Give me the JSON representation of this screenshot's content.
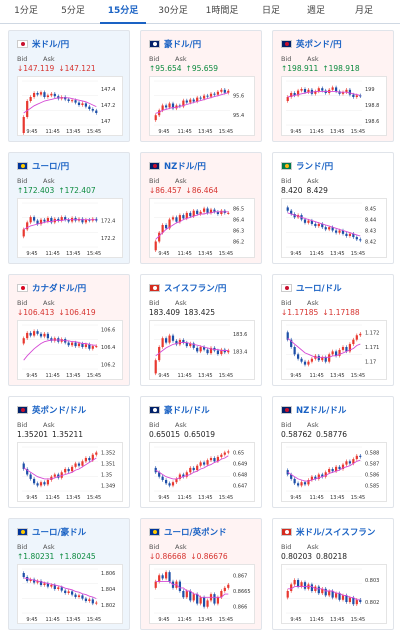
{
  "tabs": [
    "1分足",
    "5分足",
    "15分足",
    "30分足",
    "1時間足",
    "日足",
    "週足",
    "月足"
  ],
  "active_tab": 2,
  "labels": {
    "bid": "Bid",
    "ask": "Ask"
  },
  "colors": {
    "up_candle": "#e8382f",
    "down_candle": "#1d4fa8",
    "ma": "#d54ad5",
    "up_text": "#0b8a3e",
    "down_text": "#d6332f",
    "accent": "#1a62c4"
  },
  "cards": [
    {
      "pair": "米ドル/円",
      "flag": "us-flag",
      "trend": "down",
      "bid": "↓147.119",
      "ask": "↓147.121",
      "chart_data": {
        "type": "candlestick",
        "xticks": [
          "9:45",
          "11:45",
          "13:45",
          "15:45"
        ],
        "yticks": [
          "147.4",
          "147.2",
          "147"
        ],
        "ylim": [
          146.95,
          147.5
        ],
        "close": [
          147.05,
          147.25,
          147.3,
          147.35,
          147.33,
          147.36,
          147.3,
          147.32,
          147.34,
          147.31,
          147.28,
          147.3,
          147.27,
          147.25,
          147.26,
          147.23,
          147.2,
          147.22,
          147.18,
          147.15,
          147.13,
          147.1
        ],
        "ma": [
          147.1,
          147.13,
          147.16,
          147.19,
          147.21,
          147.23,
          147.25,
          147.26,
          147.27,
          147.28,
          147.29,
          147.29,
          147.29,
          147.29,
          147.28,
          147.27,
          147.26,
          147.25,
          147.24,
          147.22,
          147.2,
          147.18
        ]
      }
    },
    {
      "pair": "豪ドル/円",
      "flag": "au-flag",
      "trend": "up",
      "bid": "↑95.654",
      "ask": "↑95.659",
      "chart_data": {
        "type": "candlestick",
        "xticks": [
          "9:45",
          "11:45",
          "13:45",
          "15:45"
        ],
        "yticks": [
          "95.6",
          "95.4"
        ],
        "ylim": [
          95.3,
          95.75
        ],
        "close": [
          95.4,
          95.45,
          95.5,
          95.48,
          95.52,
          95.47,
          95.5,
          95.49,
          95.55,
          95.53,
          95.56,
          95.54,
          95.58,
          95.57,
          95.6,
          95.59,
          95.62,
          95.61,
          95.64,
          95.66,
          95.63,
          95.65
        ],
        "ma": [
          95.42,
          95.43,
          95.45,
          95.46,
          95.47,
          95.48,
          95.48,
          95.49,
          95.5,
          95.51,
          95.52,
          95.53,
          95.54,
          95.55,
          95.56,
          95.57,
          95.58,
          95.59,
          95.6,
          95.61,
          95.62,
          95.63
        ]
      }
    },
    {
      "pair": "英ポンド/円",
      "flag": "uk-flag",
      "trend": "up",
      "bid": "↑198.911",
      "ask": "↑198.918",
      "chart_data": {
        "type": "candlestick",
        "xticks": [
          "9:45",
          "11:45",
          "13:45",
          "15:45"
        ],
        "yticks": [
          "199",
          "198.8",
          "198.6"
        ],
        "ylim": [
          198.55,
          199.1
        ],
        "close": [
          198.9,
          198.95,
          198.92,
          198.98,
          199.0,
          198.96,
          198.99,
          198.94,
          198.97,
          199.01,
          198.98,
          198.95,
          198.99,
          199.02,
          198.97,
          198.94,
          198.96,
          198.99,
          198.93,
          198.9,
          198.92,
          198.91
        ],
        "ma": [
          198.9,
          198.91,
          198.92,
          198.93,
          198.94,
          198.95,
          198.96,
          198.96,
          198.97,
          198.97,
          198.97,
          198.97,
          198.97,
          198.97,
          198.97,
          198.96,
          198.96,
          198.96,
          198.95,
          198.94,
          198.93,
          198.92
        ]
      }
    },
    {
      "pair": "ユーロ/円",
      "flag": "eu-flag",
      "trend": "down",
      "bid": "↑172.403",
      "ask": "↑172.407",
      "chart_data": {
        "type": "candlestick",
        "xticks": [
          "9:45",
          "11:45",
          "13:45",
          "15:45"
        ],
        "yticks": [
          "172.4",
          "172.2"
        ],
        "ylim": [
          172.1,
          172.6
        ],
        "close": [
          172.3,
          172.38,
          172.44,
          172.4,
          172.36,
          172.41,
          172.39,
          172.43,
          172.38,
          172.42,
          172.4,
          172.44,
          172.41,
          172.39,
          172.43,
          172.4,
          172.42,
          172.38,
          172.41,
          172.4,
          172.42,
          172.4
        ],
        "ma": [
          172.3,
          172.32,
          172.34,
          172.35,
          172.36,
          172.37,
          172.38,
          172.39,
          172.39,
          172.4,
          172.4,
          172.4,
          172.41,
          172.41,
          172.41,
          172.41,
          172.41,
          172.41,
          172.41,
          172.41,
          172.41,
          172.41
        ]
      }
    },
    {
      "pair": "NZドル/円",
      "flag": "nz-flag",
      "trend": "up",
      "bid": "↓86.457",
      "ask": "↓86.464",
      "chart_data": {
        "type": "candlestick",
        "xticks": [
          "9:45",
          "11:45",
          "13:45",
          "15:45"
        ],
        "yticks": [
          "86.5",
          "86.4",
          "86.3",
          "86.2"
        ],
        "ylim": [
          86.15,
          86.55
        ],
        "close": [
          86.2,
          86.28,
          86.35,
          86.32,
          86.4,
          86.42,
          86.38,
          86.44,
          86.41,
          86.46,
          86.43,
          86.48,
          86.45,
          86.47,
          86.5,
          86.46,
          86.49,
          86.47,
          86.45,
          86.48,
          86.46,
          86.46
        ],
        "ma": [
          86.22,
          86.25,
          86.28,
          86.31,
          86.33,
          86.35,
          86.37,
          86.38,
          86.4,
          86.41,
          86.42,
          86.43,
          86.44,
          86.45,
          86.45,
          86.46,
          86.46,
          86.47,
          86.47,
          86.47,
          86.47,
          86.47
        ]
      }
    },
    {
      "pair": "ランド/円",
      "flag": "za-flag",
      "trend": "flat",
      "bid": "8.420",
      "ask": "8.429",
      "chart_data": {
        "type": "candlestick",
        "xticks": [
          "9:45",
          "11:45",
          "13:45",
          "15:45"
        ],
        "yticks": [
          "8.45",
          "8.44",
          "8.43",
          "8.42"
        ],
        "ylim": [
          8.415,
          8.455
        ],
        "close": [
          8.448,
          8.445,
          8.442,
          8.444,
          8.44,
          8.437,
          8.439,
          8.436,
          8.434,
          8.436,
          8.433,
          8.431,
          8.433,
          8.43,
          8.428,
          8.43,
          8.427,
          8.425,
          8.427,
          8.424,
          8.422,
          8.421
        ],
        "ma": [
          8.446,
          8.445,
          8.444,
          8.443,
          8.442,
          8.441,
          8.44,
          8.439,
          8.438,
          8.437,
          8.436,
          8.435,
          8.434,
          8.433,
          8.432,
          8.431,
          8.43,
          8.429,
          8.428,
          8.427,
          8.426,
          8.425
        ]
      }
    },
    {
      "pair": "カナダドル/円",
      "flag": "ca-flag",
      "trend": "up",
      "bid": "↓106.413",
      "ask": "↓106.419",
      "chart_data": {
        "type": "candlestick",
        "xticks": [
          "9:45",
          "11:45",
          "13:45",
          "15:45"
        ],
        "yticks": [
          "106.6",
          "106.4",
          "106.2"
        ],
        "ylim": [
          106.15,
          106.65
        ],
        "close": [
          106.5,
          106.56,
          106.53,
          106.58,
          106.55,
          106.52,
          106.55,
          106.5,
          106.47,
          106.5,
          106.46,
          106.49,
          106.45,
          106.42,
          106.45,
          106.41,
          106.44,
          106.4,
          106.43,
          106.38,
          106.41,
          106.41
        ],
        "ma": [
          106.25,
          106.3,
          106.34,
          106.38,
          106.41,
          106.44,
          106.46,
          106.47,
          106.48,
          106.48,
          106.48,
          106.48,
          106.47,
          106.47,
          106.46,
          106.46,
          106.45,
          106.44,
          106.44,
          106.43,
          106.42,
          106.42
        ]
      }
    },
    {
      "pair": "スイスフラン/円",
      "flag": "ch-flag",
      "trend": "flat",
      "bid": "183.409",
      "ask": "183.425",
      "chart_data": {
        "type": "candlestick",
        "xticks": [
          "9:45",
          "11:45",
          "13:45",
          "15:45"
        ],
        "yticks": [
          "183.6",
          "183.4"
        ],
        "ylim": [
          183.2,
          183.7
        ],
        "close": [
          183.3,
          183.45,
          183.55,
          183.5,
          183.58,
          183.52,
          183.48,
          183.53,
          183.5,
          183.46,
          183.49,
          183.44,
          183.4,
          183.45,
          183.42,
          183.38,
          183.44,
          183.41,
          183.37,
          183.42,
          183.39,
          183.41
        ],
        "ma": [
          183.35,
          183.38,
          183.41,
          183.44,
          183.46,
          183.48,
          183.49,
          183.5,
          183.5,
          183.5,
          183.49,
          183.48,
          183.47,
          183.46,
          183.45,
          183.44,
          183.43,
          183.42,
          183.42,
          183.41,
          183.41,
          183.41
        ]
      }
    },
    {
      "pair": "ユーロ/ドル",
      "flag": "eu-us-flag",
      "trend": "flat",
      "bid": "↓1.17185",
      "ask": "↓1.17188",
      "chart_data": {
        "type": "candlestick",
        "xticks": [
          "9:45",
          "11:45",
          "13:45",
          "15:45"
        ],
        "yticks": [
          "1.172",
          "1.171",
          "1.17"
        ],
        "ylim": [
          1.1695,
          1.1725
        ],
        "close": [
          1.1715,
          1.171,
          1.1705,
          1.1702,
          1.17,
          1.1698,
          1.17,
          1.1702,
          1.1704,
          1.1701,
          1.1703,
          1.17,
          1.1705,
          1.1707,
          1.1704,
          1.1708,
          1.171,
          1.1707,
          1.1712,
          1.1715,
          1.1718,
          1.1719
        ],
        "ma": [
          1.1716,
          1.1714,
          1.1712,
          1.171,
          1.1708,
          1.1706,
          1.1705,
          1.1704,
          1.1703,
          1.1703,
          1.1703,
          1.1703,
          1.1703,
          1.1704,
          1.1704,
          1.1705,
          1.1706,
          1.1707,
          1.1708,
          1.1709,
          1.1711,
          1.1712
        ]
      }
    },
    {
      "pair": "英ポンド/ドル",
      "flag": "uk-us-flag",
      "trend": "flat",
      "bid": "1.35201",
      "ask": "1.35211",
      "chart_data": {
        "type": "candlestick",
        "xticks": [
          "9:45",
          "11:45",
          "13:45",
          "15:45"
        ],
        "yticks": [
          "1.352",
          "1.351",
          "1.35",
          "1.349"
        ],
        "ylim": [
          1.3485,
          1.3525
        ],
        "close": [
          1.3505,
          1.35,
          1.3496,
          1.3492,
          1.349,
          1.3493,
          1.3491,
          1.3495,
          1.3498,
          1.35,
          1.3497,
          1.3502,
          1.3505,
          1.3503,
          1.3507,
          1.351,
          1.3508,
          1.3512,
          1.3515,
          1.3513,
          1.3518,
          1.352
        ],
        "ma": [
          1.3506,
          1.3504,
          1.3502,
          1.35,
          1.3498,
          1.3497,
          1.3496,
          1.3496,
          1.3496,
          1.3497,
          1.3498,
          1.3499,
          1.35,
          1.3501,
          1.3502,
          1.3504,
          1.3505,
          1.3507,
          1.3509,
          1.3511,
          1.3513,
          1.3515
        ]
      }
    },
    {
      "pair": "豪ドル/ドル",
      "flag": "au-us-flag",
      "trend": "flat",
      "bid": "0.65015",
      "ask": "0.65019",
      "chart_data": {
        "type": "candlestick",
        "xticks": [
          "9:45",
          "11:45",
          "13:45",
          "15:45"
        ],
        "yticks": [
          "0.65",
          "0.649",
          "0.648",
          "0.647"
        ],
        "ylim": [
          0.6465,
          0.6505
        ],
        "close": [
          0.6482,
          0.6478,
          0.6475,
          0.6472,
          0.647,
          0.6473,
          0.6476,
          0.648,
          0.6478,
          0.6482,
          0.6486,
          0.6484,
          0.6488,
          0.6491,
          0.6489,
          0.6493,
          0.6495,
          0.6492,
          0.6496,
          0.6498,
          0.65,
          0.6501
        ],
        "ma": [
          0.6484,
          0.6482,
          0.648,
          0.6478,
          0.6477,
          0.6476,
          0.6476,
          0.6477,
          0.6478,
          0.6479,
          0.648,
          0.6482,
          0.6483,
          0.6485,
          0.6486,
          0.6488,
          0.6489,
          0.6491,
          0.6492,
          0.6494,
          0.6495,
          0.6497
        ]
      }
    },
    {
      "pair": "NZドル/ドル",
      "flag": "nz-us-flag",
      "trend": "flat",
      "bid": "0.58762",
      "ask": "0.58776",
      "chart_data": {
        "type": "candlestick",
        "xticks": [
          "9:45",
          "11:45",
          "13:45",
          "15:45"
        ],
        "yticks": [
          "0.588",
          "0.587",
          "0.586",
          "0.585"
        ],
        "ylim": [
          0.5845,
          0.5885
        ],
        "close": [
          0.586,
          0.5856,
          0.5852,
          0.585,
          0.5853,
          0.5851,
          0.5855,
          0.5858,
          0.5856,
          0.586,
          0.5858,
          0.5862,
          0.5865,
          0.5863,
          0.5867,
          0.5865,
          0.5869,
          0.5872,
          0.587,
          0.5874,
          0.5877,
          0.5876
        ],
        "ma": [
          0.5862,
          0.586,
          0.5858,
          0.5856,
          0.5855,
          0.5854,
          0.5854,
          0.5855,
          0.5856,
          0.5857,
          0.5858,
          0.5859,
          0.5861,
          0.5862,
          0.5863,
          0.5864,
          0.5866,
          0.5867,
          0.5868,
          0.587,
          0.5872,
          0.5873
        ]
      }
    },
    {
      "pair": "ユーロ/豪ドル",
      "flag": "eu-au-flag",
      "trend": "down",
      "bid": "↑1.80231",
      "ask": "↑1.80245",
      "chart_data": {
        "type": "candlestick",
        "xticks": [
          "9:45",
          "11:45",
          "13:45",
          "15:45"
        ],
        "yticks": [
          "1.806",
          "1.804",
          "1.802"
        ],
        "ylim": [
          1.801,
          1.8065
        ],
        "close": [
          1.8055,
          1.805,
          1.8052,
          1.8048,
          1.805,
          1.8045,
          1.8047,
          1.8043,
          1.8045,
          1.804,
          1.8042,
          1.8038,
          1.8035,
          1.8037,
          1.8033,
          1.803,
          1.8032,
          1.8028,
          1.8025,
          1.8027,
          1.8022,
          1.8023
        ],
        "ma": [
          1.8054,
          1.8053,
          1.8052,
          1.8051,
          1.805,
          1.8049,
          1.8048,
          1.8047,
          1.8046,
          1.8045,
          1.8044,
          1.8043,
          1.8041,
          1.804,
          1.8039,
          1.8037,
          1.8036,
          1.8034,
          1.8033,
          1.8031,
          1.803,
          1.8028
        ]
      }
    },
    {
      "pair": "ユーロ/英ポンド",
      "flag": "eu-uk-flag",
      "trend": "up",
      "bid": "↓0.86668",
      "ask": "↓0.86676",
      "chart_data": {
        "type": "candlestick",
        "xticks": [
          "9:45",
          "11:45",
          "13:45",
          "15:45"
        ],
        "yticks": [
          "0.867",
          "0.8665",
          "0.866"
        ],
        "ylim": [
          0.8658,
          0.8672
        ],
        "close": [
          0.8668,
          0.867,
          0.8669,
          0.8671,
          0.8668,
          0.8666,
          0.8668,
          0.8665,
          0.8663,
          0.8665,
          0.8662,
          0.8664,
          0.8661,
          0.8663,
          0.866,
          0.8662,
          0.8664,
          0.8661,
          0.8663,
          0.8665,
          0.8666,
          0.8667
        ],
        "ma": [
          0.8668,
          0.8668,
          0.8668,
          0.8668,
          0.8668,
          0.8667,
          0.8667,
          0.8666,
          0.8666,
          0.8665,
          0.8665,
          0.8664,
          0.8664,
          0.8663,
          0.8663,
          0.8663,
          0.8663,
          0.8663,
          0.8663,
          0.8663,
          0.8664,
          0.8664
        ]
      }
    },
    {
      "pair": "米ドル/スイスフラン",
      "flag": "us-ch-flag",
      "trend": "flat",
      "bid": "0.80203",
      "ask": "0.80218",
      "chart_data": {
        "type": "candlestick",
        "xticks": [
          "9:45",
          "11:45",
          "13:45",
          "15:45"
        ],
        "yticks": [
          "0.803",
          "0.802"
        ],
        "ylim": [
          0.8015,
          0.8035
        ],
        "close": [
          0.8025,
          0.8028,
          0.803,
          0.8027,
          0.8029,
          0.8026,
          0.8028,
          0.8025,
          0.8027,
          0.8024,
          0.8026,
          0.8023,
          0.8025,
          0.8022,
          0.8024,
          0.8021,
          0.8023,
          0.802,
          0.8022,
          0.8019,
          0.8021,
          0.802
        ],
        "ma": [
          0.8026,
          0.8026,
          0.8027,
          0.8027,
          0.8027,
          0.8027,
          0.8027,
          0.8027,
          0.8026,
          0.8026,
          0.8026,
          0.8025,
          0.8025,
          0.8025,
          0.8024,
          0.8024,
          0.8023,
          0.8023,
          0.8022,
          0.8022,
          0.8021,
          0.8021
        ]
      }
    }
  ]
}
